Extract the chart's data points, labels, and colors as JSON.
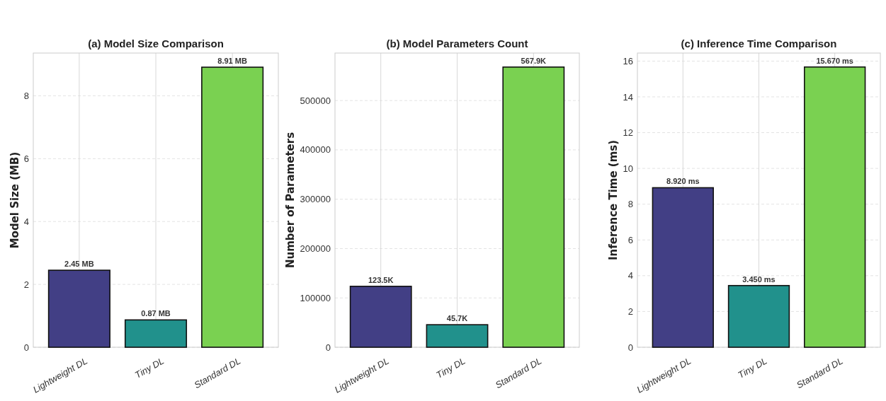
{
  "chart_data": [
    {
      "type": "bar",
      "title": "(a) Model Size Comparison",
      "ylabel": "Model Size (MB)",
      "categories": [
        "Lightweight DL",
        "Tiny DL",
        "Standard DL"
      ],
      "values": [
        2.45,
        0.87,
        8.91
      ],
      "colors": [
        "#423f85",
        "#21918c",
        "#7ad151"
      ],
      "value_labels": [
        "2.45 MB",
        "0.87 MB",
        "8.91 MB"
      ],
      "ylim": [
        0,
        9.36
      ],
      "yticks": [
        0,
        2,
        4,
        6,
        8
      ],
      "grid": true
    },
    {
      "type": "bar",
      "title": "(b) Model Parameters Count",
      "ylabel": "Number of Parameters",
      "categories": [
        "Lightweight DL",
        "Tiny DL",
        "Standard DL"
      ],
      "values": [
        123500,
        45700,
        567900
      ],
      "colors": [
        "#423f85",
        "#21918c",
        "#7ad151"
      ],
      "value_labels": [
        "123.5K",
        "45.7K",
        "567.9K"
      ],
      "ylim": [
        0,
        596300
      ],
      "yticks": [
        0,
        100000,
        200000,
        300000,
        400000,
        500000
      ],
      "grid": true
    },
    {
      "type": "bar",
      "title": "(c) Inference Time Comparison",
      "ylabel": "Inference Time (ms)",
      "categories": [
        "Lightweight DL",
        "Tiny DL",
        "Standard DL"
      ],
      "values": [
        8.92,
        3.45,
        15.67
      ],
      "colors": [
        "#423f85",
        "#21918c",
        "#7ad151"
      ],
      "value_labels": [
        "8.920 ms",
        "3.450 ms",
        "15.670 ms"
      ],
      "ylim": [
        0,
        16.45
      ],
      "yticks": [
        0,
        2,
        4,
        6,
        8,
        10,
        12,
        14,
        16
      ],
      "grid": true
    }
  ]
}
